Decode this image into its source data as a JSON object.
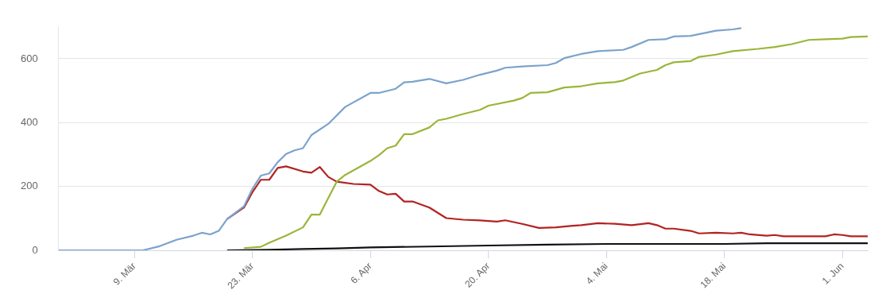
{
  "chart_data": {
    "type": "line",
    "xlim": [
      "--02-29",
      "--06-04"
    ],
    "xticks": [
      {
        "value": "--03-09",
        "label": "9. Mär"
      },
      {
        "value": "--03-23",
        "label": "23. Mär"
      },
      {
        "value": "--04-06",
        "label": "6. Apr"
      },
      {
        "value": "--04-20",
        "label": "20. Apr"
      },
      {
        "value": "--05-04",
        "label": "4. Mai"
      },
      {
        "value": "--05-18",
        "label": "18. Mai"
      },
      {
        "value": "--06-01",
        "label": "1. Jun"
      }
    ],
    "ylim": [
      0,
      700
    ],
    "yticks": [
      0,
      200,
      400,
      600
    ],
    "grid": "y",
    "legend": false,
    "marker": "none",
    "line_style": "solid",
    "series": [
      {
        "color": "#7ba3cc",
        "x": [
          "--02-29",
          "--03-10",
          "--03-12",
          "--03-14",
          "--03-16",
          "--03-17",
          "--03-18",
          "--03-19",
          "--03-20",
          "--03-22",
          "--03-23",
          "--03-24",
          "--03-25",
          "--03-26",
          "--03-27",
          "--03-28",
          "--03-29",
          "--03-30",
          "--04-01",
          "--04-03",
          "--04-06",
          "--04-07",
          "--04-09",
          "--04-10",
          "--04-11",
          "--04-13",
          "--04-15",
          "--04-17",
          "--04-19",
          "--04-21",
          "--04-22",
          "--04-24",
          "--04-27",
          "--04-28",
          "--04-29",
          "--05-01",
          "--05-03",
          "--05-06",
          "--05-07",
          "--05-09",
          "--05-11",
          "--05-12",
          "--05-14",
          "--05-17",
          "--05-19",
          "--05-20"
        ],
        "values": [
          0,
          0,
          13,
          33,
          46,
          55,
          50,
          61,
          98,
          138,
          193,
          234,
          241,
          276,
          302,
          313,
          320,
          361,
          396,
          449,
          493,
          493,
          506,
          526,
          528,
          537,
          523,
          534,
          550,
          563,
          572,
          576,
          580,
          587,
          602,
          615,
          624,
          628,
          637,
          659,
          661,
          670,
          672,
          688,
          692,
          696
        ]
      },
      {
        "color": "#9ab53a",
        "x": [
          "--03-22",
          "--03-24",
          "--03-25",
          "--03-27",
          "--03-29",
          "--03-30",
          "--03-31",
          "--04-01",
          "--04-02",
          "--04-03",
          "--04-06",
          "--04-07",
          "--04-08",
          "--04-09",
          "--04-10",
          "--04-11",
          "--04-13",
          "--04-14",
          "--04-15",
          "--04-17",
          "--04-19",
          "--04-20",
          "--04-23",
          "--04-24",
          "--04-25",
          "--04-27",
          "--04-29",
          "--05-01",
          "--05-03",
          "--05-05",
          "--05-06",
          "--05-08",
          "--05-10",
          "--05-11",
          "--05-12",
          "--05-14",
          "--05-15",
          "--05-17",
          "--05-19",
          "--05-22",
          "--05-24",
          "--05-26",
          "--05-28",
          "--05-30",
          "--06-01",
          "--06-02",
          "--06-04"
        ],
        "values": [
          7,
          11,
          24,
          46,
          72,
          112,
          112,
          164,
          215,
          236,
          280,
          298,
          320,
          328,
          364,
          364,
          385,
          407,
          412,
          427,
          440,
          453,
          469,
          477,
          493,
          495,
          510,
          514,
          523,
          527,
          532,
          554,
          565,
          580,
          589,
          593,
          606,
          613,
          624,
          631,
          637,
          646,
          659,
          661,
          663,
          668,
          670
        ]
      },
      {
        "color": "#b22222",
        "x": [
          "--03-20",
          "--03-22",
          "--03-23",
          "--03-24",
          "--03-25",
          "--03-26",
          "--03-27",
          "--03-29",
          "--03-30",
          "--03-31",
          "--04-01",
          "--04-02",
          "--04-04",
          "--04-06",
          "--04-07",
          "--04-08",
          "--04-09",
          "--04-10",
          "--04-11",
          "--04-13",
          "--04-15",
          "--04-17",
          "--04-19",
          "--04-21",
          "--04-22",
          "--04-24",
          "--04-26",
          "--04-28",
          "--04-30",
          "--05-01",
          "--05-03",
          "--05-05",
          "--05-07",
          "--05-09",
          "--05-10",
          "--05-11",
          "--05-12",
          "--05-14",
          "--05-15",
          "--05-17",
          "--05-19",
          "--05-20",
          "--05-21",
          "--05-23",
          "--05-24",
          "--05-25",
          "--05-27",
          "--05-30",
          "--05-31",
          "--06-01",
          "--06-02",
          "--06-04"
        ],
        "values": [
          98,
          134,
          182,
          221,
          221,
          258,
          263,
          247,
          243,
          261,
          230,
          215,
          208,
          206,
          186,
          175,
          177,
          153,
          153,
          134,
          101,
          96,
          94,
          90,
          94,
          83,
          70,
          72,
          77,
          79,
          85,
          83,
          79,
          85,
          79,
          68,
          68,
          61,
          53,
          55,
          53,
          55,
          50,
          46,
          48,
          44,
          44,
          44,
          50,
          48,
          44,
          44
        ]
      },
      {
        "color": "#111111",
        "x": [
          "--03-20",
          "--03-25",
          "--03-29",
          "--04-02",
          "--04-06",
          "--04-13",
          "--04-20",
          "--04-27",
          "--05-04",
          "--05-18",
          "--05-23",
          "--06-04"
        ],
        "values": [
          0,
          2,
          4,
          6,
          9,
          12,
          15,
          18,
          20,
          20,
          22,
          22
        ]
      }
    ]
  }
}
